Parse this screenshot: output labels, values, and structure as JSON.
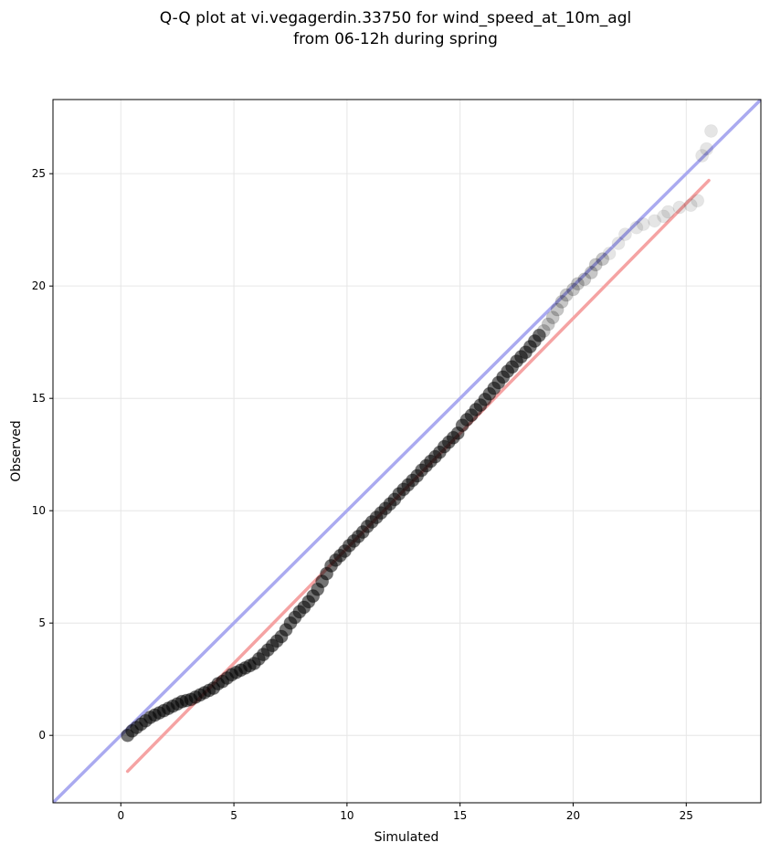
{
  "chart_data": {
    "type": "scatter",
    "title_lines": [
      "Q-Q plot at vi.vegagerdin.33750 for wind_speed_at_10m_agl",
      "from 06-12h during spring"
    ],
    "xlabel": "Simulated",
    "ylabel": "Observed",
    "xlim": [
      -3,
      28.3
    ],
    "ylim": [
      -3,
      28.3
    ],
    "xticks": [
      0,
      5,
      10,
      15,
      20,
      25
    ],
    "yticks": [
      0,
      5,
      10,
      15,
      20,
      25
    ],
    "grid": true,
    "reference_line": {
      "name": "1:1 line",
      "color": "#aaaaf0",
      "slope": 1,
      "intercept": 0
    },
    "fit_line": {
      "name": "fitted line",
      "color": "#f5a3a3",
      "from": [
        0.3,
        -1.6
      ],
      "to": [
        26.0,
        24.7
      ]
    },
    "point_color": "#000000",
    "series": [
      {
        "x": [
          0.3,
          0.5,
          0.7,
          0.9,
          1.1,
          1.3,
          1.5,
          1.7,
          1.9,
          2.1,
          2.3,
          2.5,
          2.7,
          2.9,
          3.1,
          3.3,
          3.5,
          3.7,
          3.9,
          4.1,
          4.3,
          4.5,
          4.7,
          4.9,
          5.1,
          5.3,
          5.5,
          5.7,
          5.9,
          6.1,
          6.3,
          6.5,
          6.7,
          6.9,
          7.1,
          7.3,
          7.5,
          7.7,
          7.9,
          8.1,
          8.3,
          8.5,
          8.7,
          8.9,
          9.1,
          9.3,
          9.5,
          9.7,
          9.9,
          10.1,
          10.3,
          10.5,
          10.7,
          10.9,
          11.1,
          11.3,
          11.5,
          11.7,
          11.9,
          12.1,
          12.3,
          12.5,
          12.7,
          12.9,
          13.1,
          13.3,
          13.5,
          13.7,
          13.9,
          14.1,
          14.3,
          14.5,
          14.7,
          14.9,
          15.1,
          15.3,
          15.5,
          15.7,
          15.9,
          16.1,
          16.3,
          16.5,
          16.7,
          16.9,
          17.1,
          17.3,
          17.5,
          17.7,
          17.9,
          18.1,
          18.3,
          18.5,
          18.7,
          18.9,
          19.1,
          19.3,
          19.5,
          19.7,
          20.0,
          20.2,
          20.5,
          20.8,
          21.0,
          21.3,
          21.6,
          22.0,
          22.3,
          22.8,
          23.1,
          23.6,
          24.0,
          24.2,
          24.7,
          25.2,
          25.5,
          25.7,
          25.9,
          26.1
        ],
        "y": [
          0.0,
          0.2,
          0.35,
          0.5,
          0.65,
          0.8,
          0.9,
          1.0,
          1.1,
          1.2,
          1.3,
          1.4,
          1.5,
          1.55,
          1.6,
          1.7,
          1.8,
          1.9,
          2.0,
          2.1,
          2.3,
          2.4,
          2.55,
          2.7,
          2.8,
          2.9,
          3.0,
          3.1,
          3.2,
          3.4,
          3.6,
          3.8,
          4.0,
          4.2,
          4.4,
          4.7,
          5.0,
          5.25,
          5.5,
          5.7,
          5.95,
          6.2,
          6.5,
          6.85,
          7.2,
          7.55,
          7.8,
          8.0,
          8.2,
          8.45,
          8.65,
          8.85,
          9.05,
          9.3,
          9.5,
          9.7,
          9.9,
          10.1,
          10.3,
          10.5,
          10.75,
          10.95,
          11.15,
          11.35,
          11.55,
          11.8,
          12.0,
          12.2,
          12.4,
          12.6,
          12.85,
          13.05,
          13.25,
          13.45,
          13.8,
          14.05,
          14.25,
          14.5,
          14.7,
          14.95,
          15.2,
          15.45,
          15.7,
          15.95,
          16.2,
          16.4,
          16.65,
          16.85,
          17.05,
          17.3,
          17.55,
          17.8,
          18.0,
          18.3,
          18.6,
          18.95,
          19.3,
          19.6,
          19.85,
          20.1,
          20.3,
          20.6,
          20.95,
          21.2,
          21.45,
          21.9,
          22.3,
          22.6,
          22.75,
          22.9,
          23.1,
          23.3,
          23.5,
          23.6,
          23.8,
          25.8,
          26.1,
          26.9
        ]
      }
    ]
  }
}
